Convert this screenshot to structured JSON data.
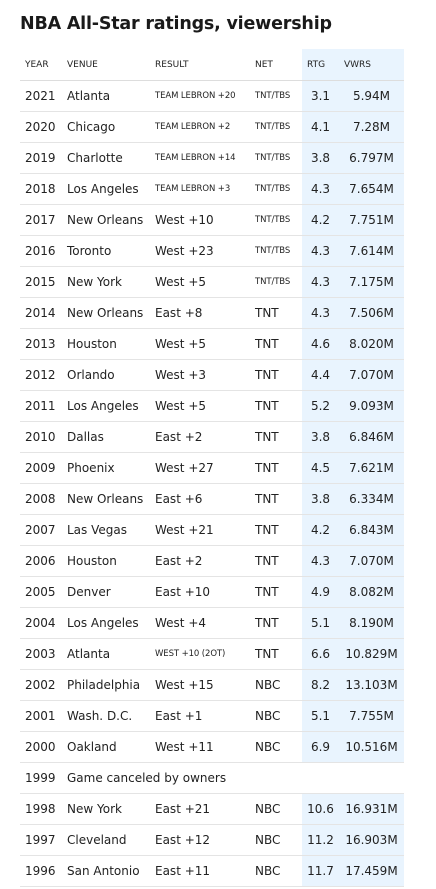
{
  "title": "NBA All-Star ratings, viewership",
  "headers": {
    "year": "YEAR",
    "venue": "VENUE",
    "result": "RESULT",
    "net": "NET",
    "rtg": "RTG",
    "vwrs": "VWRS"
  },
  "rows": [
    {
      "year": "2021",
      "venue": "Atlanta",
      "result": "TEAM LEBRON +20",
      "net": "TNT/TBS",
      "rtg": "3.1",
      "vwrs": "5.94M"
    },
    {
      "year": "2020",
      "venue": "Chicago",
      "result": "TEAM LEBRON +2",
      "net": "TNT/TBS",
      "rtg": "4.1",
      "vwrs": "7.28M"
    },
    {
      "year": "2019",
      "venue": "Charlotte",
      "result": "TEAM LEBRON +14",
      "net": "TNT/TBS",
      "rtg": "3.8",
      "vwrs": "6.797M"
    },
    {
      "year": "2018",
      "venue": "Los Angeles",
      "result": "TEAM LEBRON +3",
      "net": "TNT/TBS",
      "rtg": "4.3",
      "vwrs": "7.654M"
    },
    {
      "year": "2017",
      "venue": "New Orleans",
      "result": "West +10",
      "net": "TNT/TBS",
      "rtg": "4.2",
      "vwrs": "7.751M"
    },
    {
      "year": "2016",
      "venue": "Toronto",
      "result": "West +23",
      "net": "TNT/TBS",
      "rtg": "4.3",
      "vwrs": "7.614M"
    },
    {
      "year": "2015",
      "venue": "New York",
      "result": "West +5",
      "net": "TNT/TBS",
      "rtg": "4.3",
      "vwrs": "7.175M"
    },
    {
      "year": "2014",
      "venue": "New Orleans",
      "result": "East +8",
      "net": "TNT",
      "rtg": "4.3",
      "vwrs": "7.506M"
    },
    {
      "year": "2013",
      "venue": "Houston",
      "result": "West +5",
      "net": "TNT",
      "rtg": "4.6",
      "vwrs": "8.020M"
    },
    {
      "year": "2012",
      "venue": "Orlando",
      "result": "West +3",
      "net": "TNT",
      "rtg": "4.4",
      "vwrs": "7.070M"
    },
    {
      "year": "2011",
      "venue": "Los Angeles",
      "result": "West +5",
      "net": "TNT",
      "rtg": "5.2",
      "vwrs": "9.093M"
    },
    {
      "year": "2010",
      "venue": "Dallas",
      "result": "East +2",
      "net": "TNT",
      "rtg": "3.8",
      "vwrs": "6.846M"
    },
    {
      "year": "2009",
      "venue": "Phoenix",
      "result": "West +27",
      "net": "TNT",
      "rtg": "4.5",
      "vwrs": "7.621M"
    },
    {
      "year": "2008",
      "venue": "New Orleans",
      "result": "East +6",
      "net": "TNT",
      "rtg": "3.8",
      "vwrs": "6.334M"
    },
    {
      "year": "2007",
      "venue": "Las Vegas",
      "result": "West +21",
      "net": "TNT",
      "rtg": "4.2",
      "vwrs": "6.843M"
    },
    {
      "year": "2006",
      "venue": "Houston",
      "result": "East +2",
      "net": "TNT",
      "rtg": "4.3",
      "vwrs": "7.070M"
    },
    {
      "year": "2005",
      "venue": "Denver",
      "result": "East +10",
      "net": "TNT",
      "rtg": "4.9",
      "vwrs": "8.082M"
    },
    {
      "year": "2004",
      "venue": "Los Angeles",
      "result": "West +4",
      "net": "TNT",
      "rtg": "5.1",
      "vwrs": "8.190M"
    },
    {
      "year": "2003",
      "venue": "Atlanta",
      "result": "WEST +10 (2OT)",
      "net": "TNT",
      "rtg": "6.6",
      "vwrs": "10.829M"
    },
    {
      "year": "2002",
      "venue": "Philadelphia",
      "result": "West +15",
      "net": "NBC",
      "rtg": "8.2",
      "vwrs": "13.103M"
    },
    {
      "year": "2001",
      "venue": "Wash. D.C.",
      "result": "East +1",
      "net": "NBC",
      "rtg": "5.1",
      "vwrs": "7.755M"
    },
    {
      "year": "2000",
      "venue": "Oakland",
      "result": "West +11",
      "net": "NBC",
      "rtg": "6.9",
      "vwrs": "10.516M"
    },
    {
      "year": "1999",
      "note": "Game canceled by owners"
    },
    {
      "year": "1998",
      "venue": "New York",
      "result": "East +21",
      "net": "NBC",
      "rtg": "10.6",
      "vwrs": "16.931M"
    },
    {
      "year": "1997",
      "venue": "Cleveland",
      "result": "East +12",
      "net": "NBC",
      "rtg": "11.2",
      "vwrs": "16.903M"
    },
    {
      "year": "1996",
      "venue": "San Antonio",
      "result": "East +11",
      "net": "NBC",
      "rtg": "11.7",
      "vwrs": "17.459M"
    }
  ]
}
